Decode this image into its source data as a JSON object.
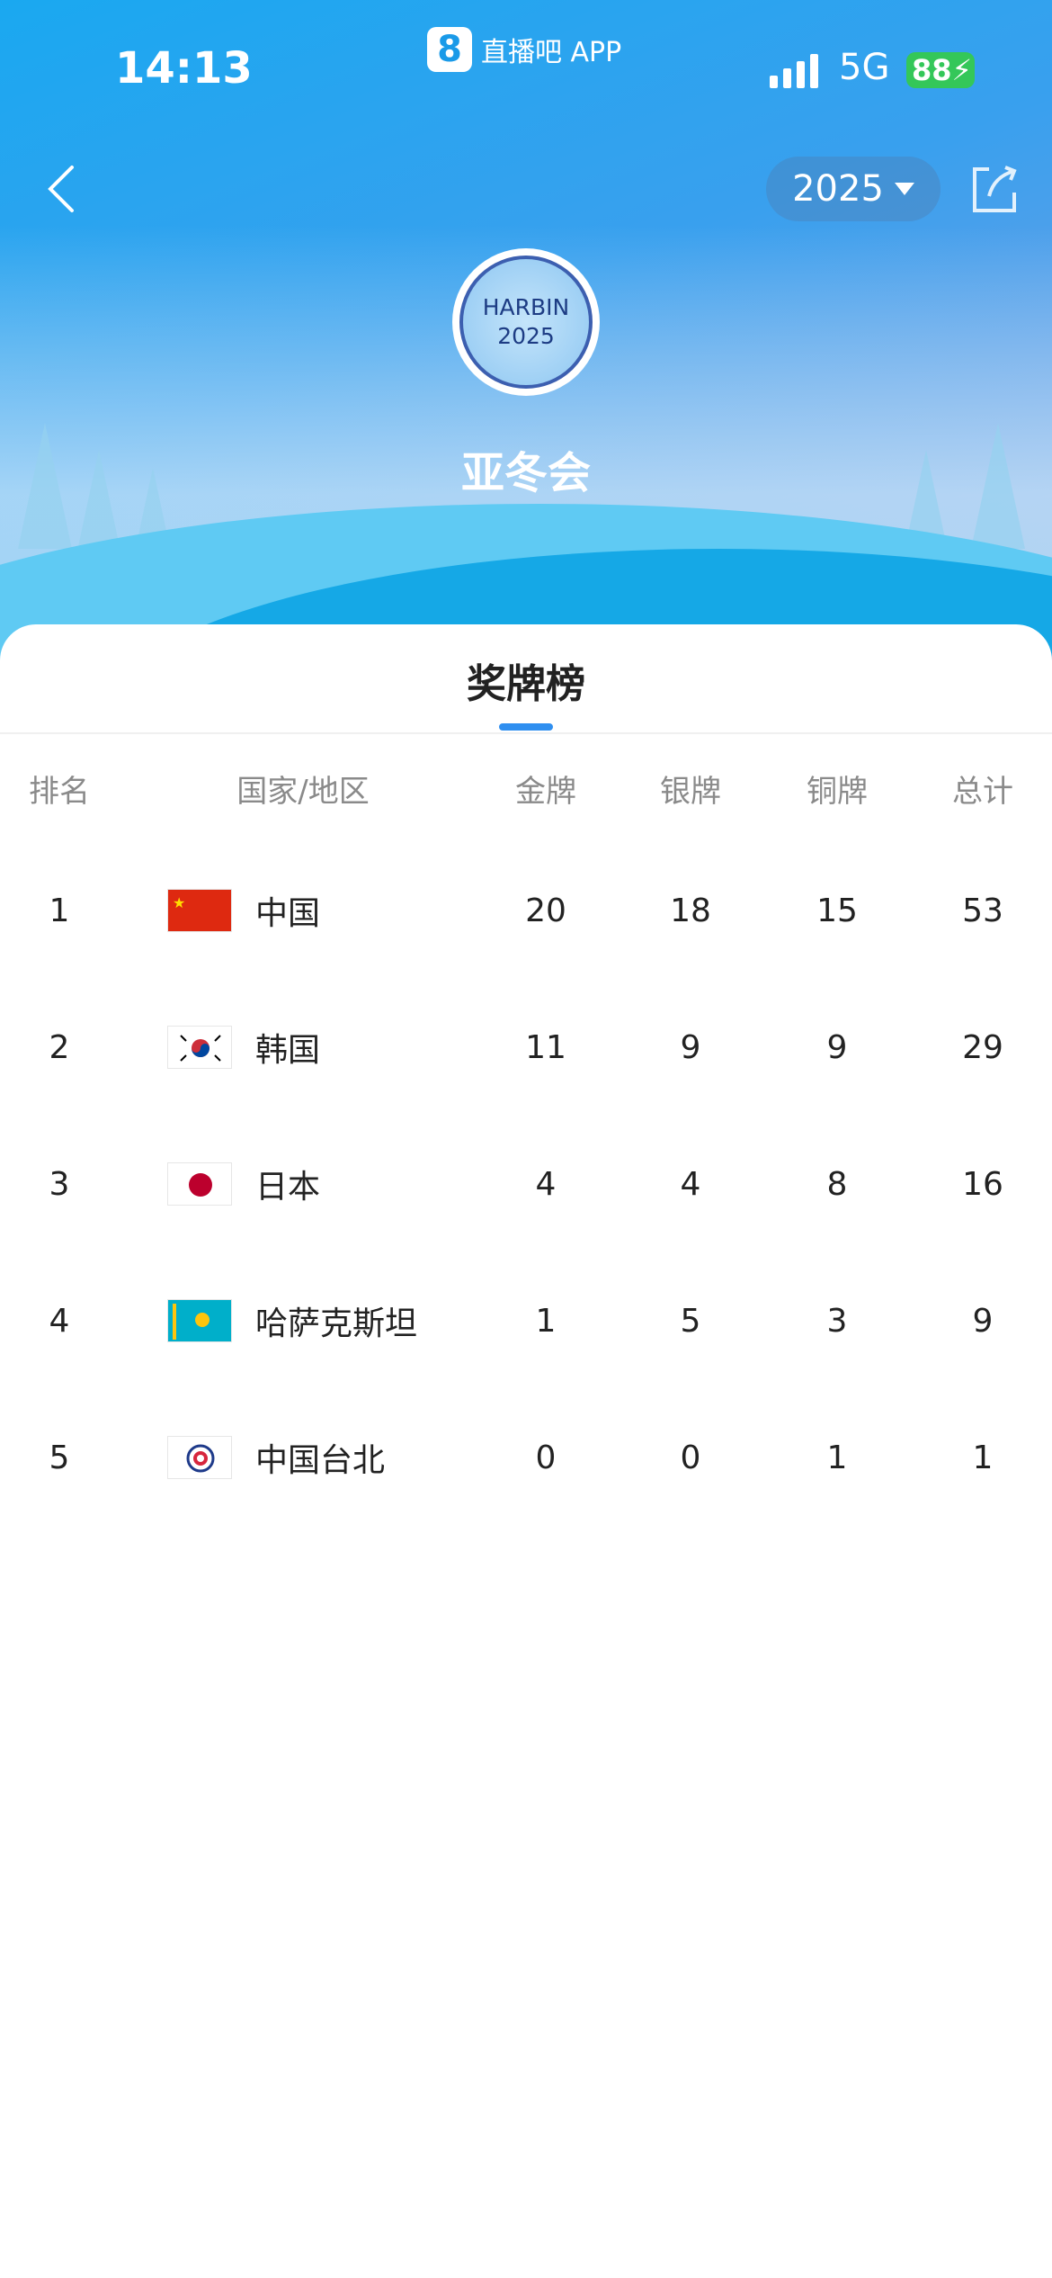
{
  "status_bar": {
    "time": "14:13",
    "app_name": "直播吧 APP",
    "app_logo": "8",
    "network": "5G",
    "battery": "88"
  },
  "header": {
    "year": "2025",
    "emblem_line1": "HARBIN",
    "emblem_line2": "2025",
    "event": "亚冬会"
  },
  "card": {
    "title": "奖牌榜"
  },
  "table": {
    "headers": [
      "排名",
      "国家/地区",
      "金牌",
      "银牌",
      "铜牌",
      "总计"
    ],
    "rows": [
      {
        "rank": "1",
        "country": "中国",
        "flag": "china-flag",
        "gold": "20",
        "silver": "18",
        "bronze": "15",
        "total": "53"
      },
      {
        "rank": "2",
        "country": "韩国",
        "flag": "south-korea-flag",
        "gold": "11",
        "silver": "9",
        "bronze": "9",
        "total": "29"
      },
      {
        "rank": "3",
        "country": "日本",
        "flag": "japan-flag",
        "gold": "4",
        "silver": "4",
        "bronze": "8",
        "total": "16"
      },
      {
        "rank": "4",
        "country": "哈萨克斯坦",
        "flag": "kazakhstan-flag",
        "gold": "1",
        "silver": "5",
        "bronze": "3",
        "total": "9"
      },
      {
        "rank": "5",
        "country": "中国台北",
        "flag": "chinese-taipei-flag",
        "gold": "0",
        "silver": "0",
        "bronze": "1",
        "total": "1"
      }
    ]
  },
  "colors": {
    "accent": "#2f8ff0",
    "battery": "#34c759"
  }
}
